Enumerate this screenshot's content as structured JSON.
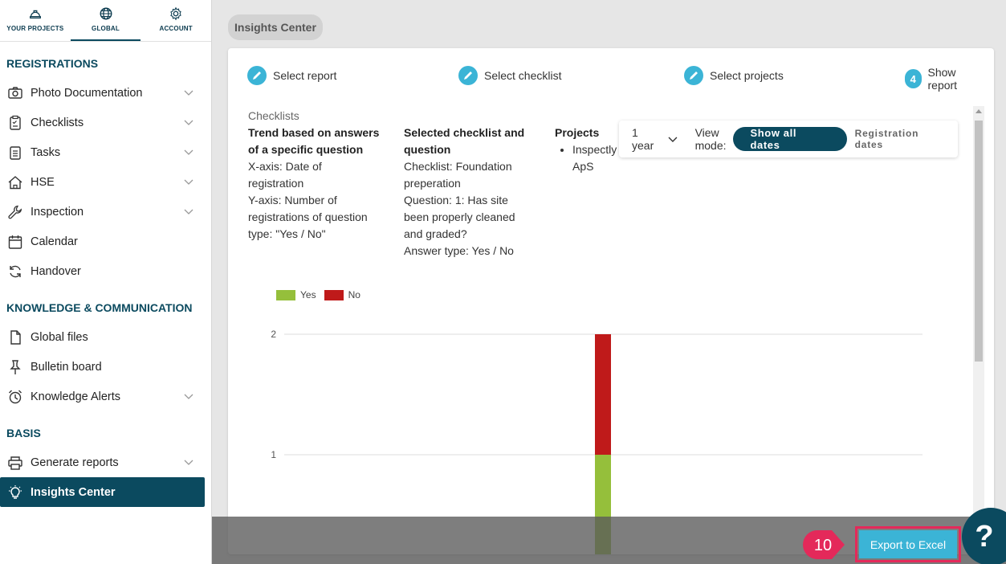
{
  "topnav": [
    {
      "label": "YOUR PROJECTS",
      "icon": "hard-hat-icon"
    },
    {
      "label": "GLOBAL",
      "icon": "globe-icon"
    },
    {
      "label": "ACCOUNT",
      "icon": "gear-icon"
    }
  ],
  "sidebar": {
    "registrations_title": "REGISTRATIONS",
    "registrations": [
      {
        "label": "Photo Documentation",
        "icon": "camera-icon"
      },
      {
        "label": "Checklists",
        "icon": "clipboard-icon"
      },
      {
        "label": "Tasks",
        "icon": "task-list-icon"
      },
      {
        "label": "HSE",
        "icon": "house-icon"
      },
      {
        "label": "Inspection",
        "icon": "wrench-icon"
      },
      {
        "label": "Calendar",
        "icon": "calendar-icon"
      },
      {
        "label": "Handover",
        "icon": "refresh-icon"
      }
    ],
    "knowledge_title": "KNOWLEDGE & COMMUNICATION",
    "knowledge": [
      {
        "label": "Global files",
        "icon": "file-icon"
      },
      {
        "label": "Bulletin board",
        "icon": "pin-icon"
      },
      {
        "label": "Knowledge Alerts",
        "icon": "alarm-clock-icon"
      }
    ],
    "basis_title": "BASIS",
    "basis": [
      {
        "label": "Generate reports",
        "icon": "printer-icon"
      },
      {
        "label": "Insights Center",
        "icon": "lightbulb-icon"
      }
    ]
  },
  "breadcrumb": "Insights Center",
  "steps": [
    {
      "label": "Select report",
      "marker": ""
    },
    {
      "label": "Select checklist",
      "marker": ""
    },
    {
      "label": "Select projects",
      "marker": ""
    },
    {
      "label": "Show report",
      "marker": "4"
    }
  ],
  "info": {
    "label": "Checklists",
    "trend": {
      "heading1": "Trend based on answers",
      "heading2": "of a specific question",
      "lines": [
        "X-axis: Date of",
        "registration",
        "Y-axis: Number of",
        "registrations of question",
        "type: \"Yes / No\""
      ]
    },
    "selected": {
      "heading1": "Selected checklist and",
      "heading2": "question",
      "lines": [
        "Checklist: Foundation",
        "preperation",
        "Question: 1: Has site",
        "been properly cleaned",
        "and graded?",
        "Answer type: Yes / No"
      ]
    },
    "projects": {
      "heading": "Projects",
      "item1": "Inspectly",
      "item2": "ApS"
    }
  },
  "viewbar": {
    "period": "1 year",
    "view_mode_1": "View",
    "view_mode_2": "mode:",
    "show_all": "Show all dates",
    "registration_dates": "Registration dates"
  },
  "chart_data": {
    "type": "bar",
    "stacked": true,
    "categories": [
      ""
    ],
    "series": [
      {
        "name": "Yes",
        "values": [
          1
        ],
        "color": "#95bf3b"
      },
      {
        "name": "No",
        "values": [
          1
        ],
        "color": "#bf1a1a"
      }
    ],
    "y_ticks": [
      "1",
      "2"
    ],
    "ylim": [
      0,
      2
    ],
    "legend_position": "top-left",
    "grid": true
  },
  "callout_number": "10",
  "export_label": "Export to Excel",
  "help_label": "?",
  "colors": {
    "primary": "#0b4a5f",
    "accent": "#3bb4d6",
    "highlight": "#e4295a"
  }
}
